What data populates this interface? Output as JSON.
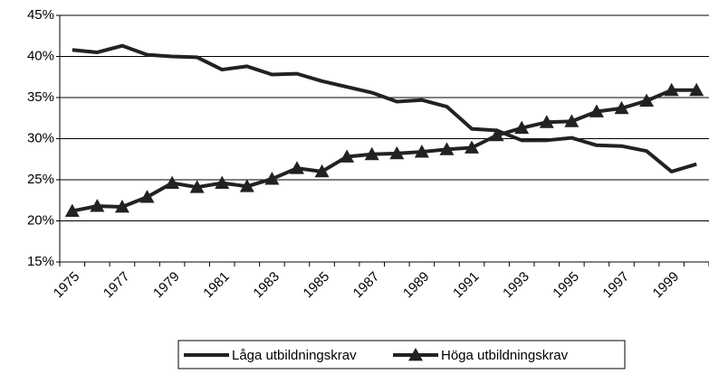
{
  "chart_data": {
    "type": "line",
    "categories": [
      "1975",
      null,
      "1977",
      null,
      "1979",
      null,
      "1981",
      null,
      "1983",
      null,
      "1985",
      null,
      "1987",
      null,
      "1989",
      null,
      "1991",
      null,
      "1993",
      null,
      "1995",
      null,
      "1997",
      null,
      "1999",
      null
    ],
    "series": [
      {
        "name": "Låga utbildningskrav",
        "color": "#222222",
        "marker": "none",
        "values": [
          40.8,
          40.5,
          41.3,
          40.2,
          40.0,
          39.9,
          38.4,
          38.8,
          37.8,
          37.9,
          37.0,
          36.3,
          35.6,
          34.5,
          34.7,
          33.9,
          31.2,
          31.0,
          29.8,
          29.8,
          30.1,
          29.2,
          29.1,
          28.5,
          26.0,
          26.9
        ]
      },
      {
        "name": "Höga utbildningskrav",
        "color": "#222222",
        "marker": "triangle",
        "values": [
          21.2,
          21.8,
          21.7,
          22.9,
          24.6,
          24.1,
          24.6,
          24.2,
          25.1,
          26.4,
          26.0,
          27.8,
          28.1,
          28.2,
          28.4,
          28.7,
          28.9,
          30.4,
          31.3,
          32.0,
          32.1,
          33.3,
          33.7,
          34.6,
          35.9,
          35.9
        ]
      }
    ],
    "ylim": [
      15,
      45
    ],
    "yticks": [
      {
        "value": 15,
        "label": "15%"
      },
      {
        "value": 20,
        "label": "20%"
      },
      {
        "value": 25,
        "label": "25%"
      },
      {
        "value": 30,
        "label": "30%"
      },
      {
        "value": 35,
        "label": "35%"
      },
      {
        "value": 40,
        "label": "40%"
      },
      {
        "value": 45,
        "label": "45%"
      }
    ],
    "grid": true,
    "legend": "bottom"
  }
}
